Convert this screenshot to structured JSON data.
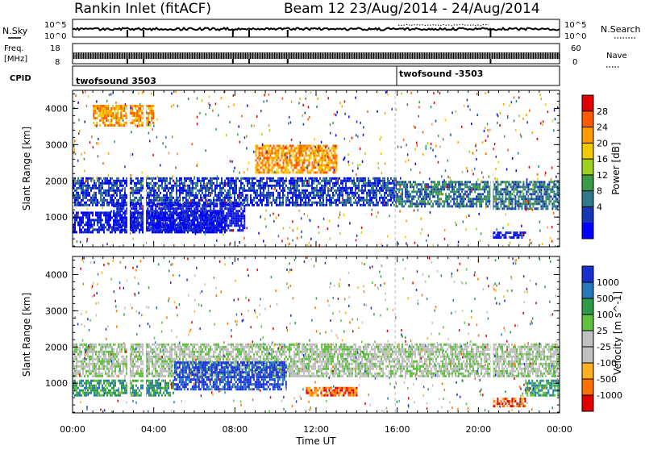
{
  "header": {
    "station": "Rankin Inlet (fitACF)",
    "beam_date": "Beam 12  23/Aug/2014 - 24/Aug/2014"
  },
  "top_panels": {
    "nsky_label": "N.Sky",
    "nsky_ticks": [
      "10^5",
      "10^0"
    ],
    "nsearch_label": "N.Search",
    "nsearch_ticks": [
      "10^5",
      "10^0"
    ],
    "freq_label_1": "Freq.",
    "freq_label_2": "[MHz]",
    "freq_ticks": [
      "18",
      "8"
    ],
    "nave_label": "Nave",
    "nave_ticks": [
      "60",
      "0"
    ],
    "cpid_label": "CPID",
    "cpid_1": "twofsound 3503",
    "cpid_2": "twofsound -3503"
  },
  "chart_data": [
    {
      "type": "heatmap",
      "quantity": "power",
      "ylabel": "Slant Range [km]",
      "yticks": [
        1000,
        2000,
        3000,
        4000
      ],
      "ylim": [
        180,
        4500
      ],
      "x_range_hours": [
        0,
        24
      ],
      "colorbar": {
        "label": "Power [dB]",
        "ticks": [
          "28",
          "24",
          "20",
          "16",
          "12",
          "8",
          "4"
        ],
        "colors": [
          "#e00000",
          "#ff5a00",
          "#ff9a00",
          "#f2c800",
          "#9ed020",
          "#3a9a48",
          "#2e7a8a",
          "#1636b8",
          "#0000ff"
        ]
      },
      "echo_regions": [
        {
          "x": [
            0.0,
            15.9
          ],
          "y": [
            1300,
            2100
          ],
          "level": 7
        },
        {
          "x": [
            0.0,
            7.5
          ],
          "y": [
            550,
            1150
          ],
          "level": 8
        },
        {
          "x": [
            2.0,
            8.5
          ],
          "y": [
            650,
            1400
          ],
          "level": 8
        },
        {
          "x": [
            15.9,
            20.6
          ],
          "y": [
            1300,
            2000
          ],
          "level": 6
        },
        {
          "x": [
            20.6,
            24.0
          ],
          "y": [
            1200,
            2000
          ],
          "level": 6
        },
        {
          "x": [
            20.6,
            22.3
          ],
          "y": [
            400,
            600
          ],
          "level": 8
        },
        {
          "x": [
            1.0,
            4.0
          ],
          "y": [
            3500,
            4100
          ],
          "level": 2
        },
        {
          "x": [
            9.0,
            13.0
          ],
          "y": [
            2200,
            3000
          ],
          "level": 2
        }
      ]
    },
    {
      "type": "heatmap",
      "quantity": "velocity",
      "xlabel": "Time UT",
      "ylabel": "Slant Range [km]",
      "xticks": [
        "00:00",
        "04:00",
        "08:00",
        "12:00",
        "16:00",
        "20:00",
        "00:00"
      ],
      "yticks": [
        1000,
        2000,
        3000,
        4000
      ],
      "ylim": [
        180,
        4500
      ],
      "x_range_hours": [
        0,
        24
      ],
      "colorbar": {
        "label": "Velocity [m s^-1]",
        "ticks": [
          "1000",
          "500",
          "100",
          "25",
          "-25",
          "-100",
          "-500",
          "-1000"
        ],
        "colors": [
          "#1a30d0",
          "#2878b8",
          "#2e9a4a",
          "#60c040",
          "#c0c0c0",
          "#c0c0c0",
          "#ffb020",
          "#ff7000",
          "#e00000"
        ]
      },
      "echo_regions": [
        {
          "x": [
            0.0,
            24.0
          ],
          "y": [
            1200,
            2100
          ],
          "level": 4
        },
        {
          "x": [
            0.0,
            5.0
          ],
          "y": [
            650,
            1100
          ],
          "level": 2
        },
        {
          "x": [
            5.0,
            10.5
          ],
          "y": [
            800,
            1600
          ],
          "level": 0
        },
        {
          "x": [
            11.5,
            14.0
          ],
          "y": [
            650,
            900
          ],
          "level": 7
        },
        {
          "x": [
            20.6,
            22.3
          ],
          "y": [
            350,
            600
          ],
          "level": 7
        },
        {
          "x": [
            22.3,
            24.0
          ],
          "y": [
            650,
            1100
          ],
          "level": 2
        }
      ]
    }
  ]
}
